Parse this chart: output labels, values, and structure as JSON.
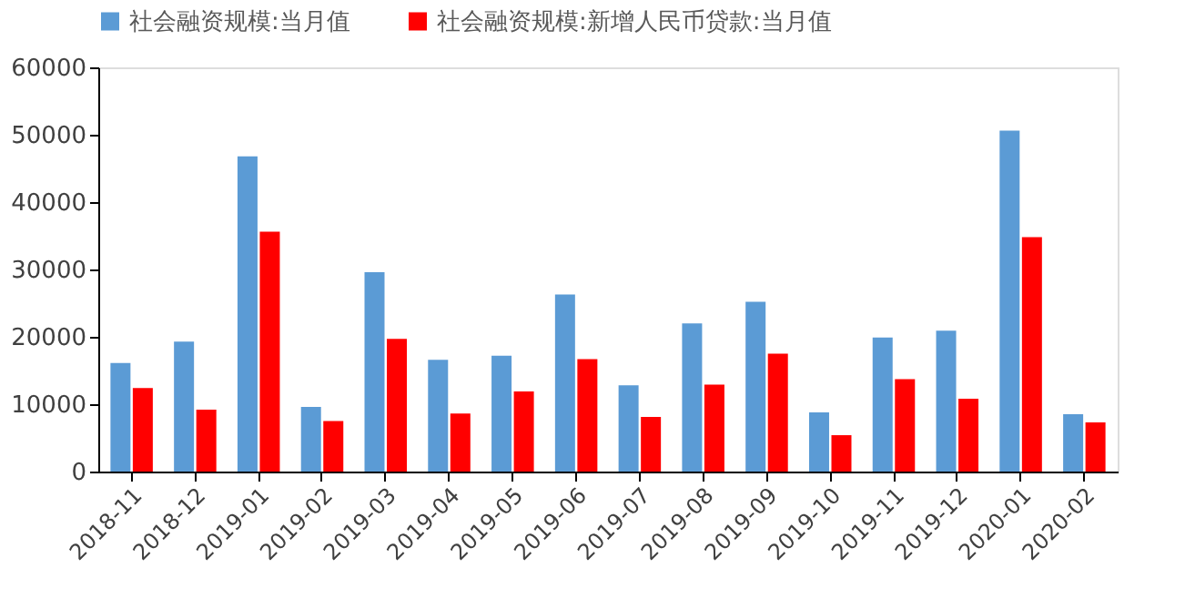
{
  "chart_data": {
    "type": "bar",
    "categories": [
      "2018-11",
      "2018-12",
      "2019-01",
      "2019-02",
      "2019-03",
      "2019-04",
      "2019-05",
      "2019-06",
      "2019-07",
      "2019-08",
      "2019-09",
      "2019-10",
      "2019-11",
      "2019-12",
      "2020-01",
      "2020-02"
    ],
    "series": [
      {
        "name": "社会融资规模:当月值",
        "color": "#5b9bd5",
        "values": [
          16100,
          19300,
          46800,
          9600,
          29600,
          16600,
          17200,
          26300,
          12800,
          22000,
          25200,
          8800,
          19900,
          20900,
          50600,
          8500
        ]
      },
      {
        "name": "社会融资规模:新增人民币贷款:当月值",
        "color": "#ff0000",
        "values": [
          12400,
          9200,
          35600,
          7500,
          19700,
          8600,
          11900,
          16700,
          8100,
          12900,
          17500,
          5400,
          13700,
          10800,
          34800,
          7300
        ]
      }
    ],
    "ylim": [
      0,
      60000
    ],
    "yticks": [
      0,
      10000,
      20000,
      30000,
      40000,
      50000,
      60000
    ],
    "grid": false,
    "legend": "top"
  }
}
